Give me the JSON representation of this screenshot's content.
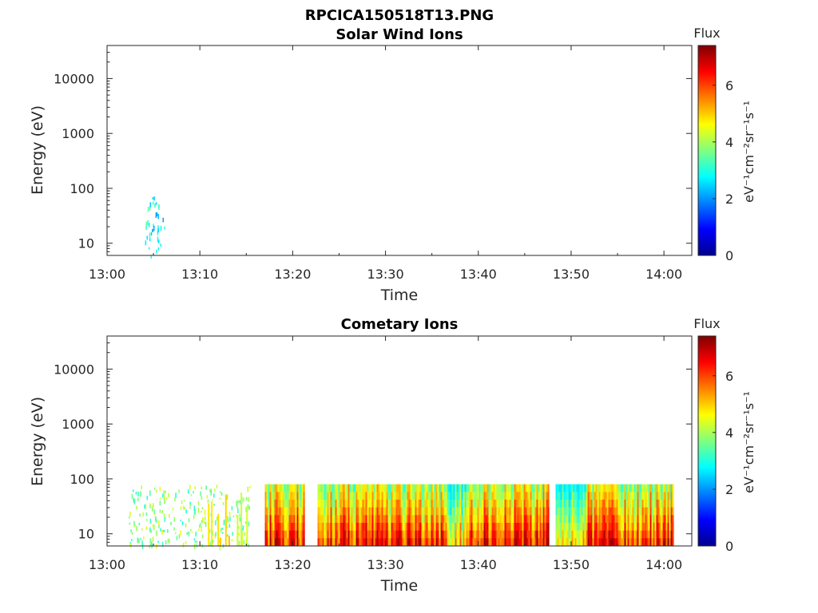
{
  "figure": {
    "title": "RPCICA150518T13.PNG"
  },
  "chart_data": [
    {
      "type": "heatmap",
      "title": "Solar Wind Ions",
      "xlabel": "Time",
      "ylabel": "Energy (eV)",
      "x_ticks": [
        "13:00",
        "13:10",
        "13:20",
        "13:30",
        "13:40",
        "13:50",
        "14:00"
      ],
      "xlim_minutes": [
        0,
        63
      ],
      "y_scale": "log",
      "y_ticks": [
        "10",
        "100",
        "1000",
        "10000"
      ],
      "ylim": [
        6,
        40000
      ],
      "colorbar": {
        "title": "Flux",
        "label": "eV⁻¹cm⁻²sr⁻¹s⁻¹",
        "ticks": [
          "0",
          "2",
          "4",
          "6"
        ],
        "range": [
          0,
          7.4
        ],
        "colormap": "jet"
      },
      "data_extent": {
        "time_start_minutes": 3.9,
        "time_end_minutes": 6.2,
        "energy_min": 6,
        "energy_max": 80,
        "flux_range": [
          2,
          3.5
        ]
      }
    },
    {
      "type": "heatmap",
      "title": "Cometary Ions",
      "xlabel": "Time",
      "ylabel": "Energy (eV)",
      "x_ticks": [
        "13:00",
        "13:10",
        "13:20",
        "13:30",
        "13:40",
        "13:50",
        "14:00"
      ],
      "xlim_minutes": [
        0,
        63
      ],
      "y_scale": "log",
      "y_ticks": [
        "10",
        "100",
        "1000",
        "10000"
      ],
      "ylim": [
        6,
        40000
      ],
      "colorbar": {
        "title": "Flux",
        "label": "eV⁻¹cm⁻²sr⁻¹s⁻¹",
        "ticks": [
          "0",
          "2",
          "4",
          "6"
        ],
        "range": [
          0,
          7.4
        ],
        "colormap": "jet"
      },
      "data_extent": {
        "sparse_interval_minutes": [
          2.3,
          15.5
        ],
        "sparse_flux_range": [
          3,
          4.5
        ],
        "dense_interval_minutes": [
          17,
          61
        ],
        "dense_flux_range": [
          5,
          7.3
        ],
        "energy_min": 6,
        "energy_max": 80
      }
    }
  ]
}
